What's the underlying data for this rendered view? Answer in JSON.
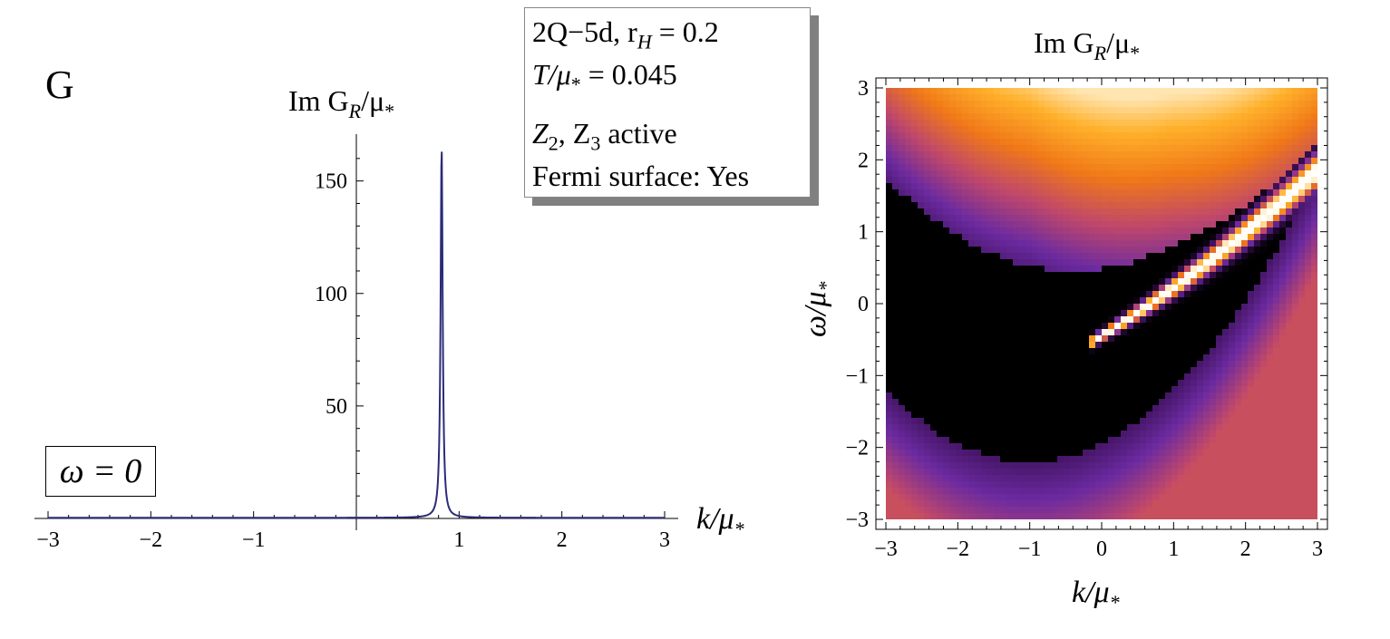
{
  "panel_label": "G",
  "info_box": {
    "line1": "2Q−5d,  r",
    "line1_sub": "H",
    "line1_tail": " = 0.2",
    "line2": "T/μ",
    "line2_sub": "*",
    "line2_tail": " = 0.045",
    "line3_a": "Z",
    "line3_a_sub": "2",
    "line3_b": ", Z",
    "line3_b_sub": "3",
    "line3_tail": " active",
    "line4": "Fermi surface: Yes"
  },
  "left_legend": "ω = 0",
  "colors": {
    "line": "#2b2b78",
    "frame": "#000000"
  },
  "chart_data": [
    {
      "type": "line",
      "title": "Im G",
      "title_sub": "R",
      "title_tail": "/μ",
      "title_tail_sub": "*",
      "xlabel": "k/μ",
      "xlabel_sub": "*",
      "xlim": [
        -3,
        3
      ],
      "ylim": [
        0,
        170
      ],
      "x_ticks": [
        -3,
        -2,
        -1,
        1,
        2,
        3
      ],
      "x_tick_labels": [
        "−3",
        "−2",
        "−1",
        "1",
        "2",
        "3"
      ],
      "y_ticks": [
        50,
        100,
        150
      ],
      "y_tick_labels": [
        "50",
        "100",
        "150"
      ],
      "series": [
        {
          "name": "Im G_R/μ* at ω = 0",
          "peak_k": 0.83,
          "peak_height": 165,
          "width": 0.012,
          "baseline": 0.3
        }
      ]
    },
    {
      "type": "heatmap",
      "title": "Im G",
      "title_sub": "R",
      "title_tail": "/μ",
      "title_tail_sub": "*",
      "xlabel": "k/μ",
      "xlabel_sub": "*",
      "ylabel": "ω/μ",
      "ylabel_sub": "*",
      "xlim": [
        -3,
        3
      ],
      "ylim": [
        -3,
        3
      ],
      "x_ticks": [
        -3,
        -2,
        -1,
        0,
        1,
        2,
        3
      ],
      "x_tick_labels": [
        "−3",
        "−2",
        "−1",
        "0",
        "1",
        "2",
        "3"
      ],
      "y_ticks": [
        -3,
        -2,
        -1,
        0,
        1,
        2,
        3
      ],
      "y_tick_labels": [
        "−3",
        "−2",
        "−1",
        "0",
        "1",
        "2",
        "3"
      ],
      "colormap": [
        "#000000",
        "#3a0f55",
        "#6b2aa0",
        "#c0486a",
        "#f07818",
        "#ffb02a",
        "#fff8e0",
        "#ffffff"
      ]
    }
  ]
}
